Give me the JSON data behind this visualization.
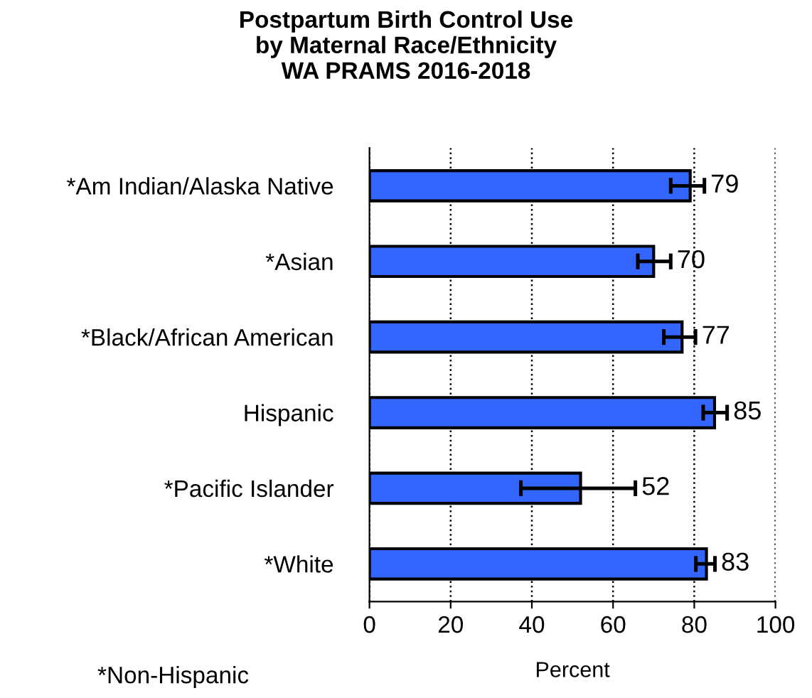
{
  "chart_data": {
    "type": "bar",
    "orientation": "horizontal",
    "title": "Postpartum Birth Control Use\nby Maternal Race/Ethnicity\nWA PRAMS 2016-2018",
    "categories": [
      "*Am Indian/Alaska Native",
      "*Asian",
      "*Black/African American",
      "Hispanic",
      "*Pacific Islander",
      "*White"
    ],
    "values": [
      79,
      70,
      77,
      85,
      52,
      83
    ],
    "errors": [
      [
        74.2,
        82.5
      ],
      [
        66.1,
        74.2
      ],
      [
        72.5,
        80.3
      ],
      [
        82.2,
        88.1
      ],
      [
        37.3,
        65.5
      ],
      [
        80.4,
        85.1
      ]
    ],
    "color": "#3366ff",
    "data_labels": true,
    "xlim": [
      0,
      100
    ],
    "xticks": [
      0,
      20,
      40,
      60,
      80,
      100
    ],
    "xlabel": "Percent",
    "grid": "x",
    "annotations": [
      "*Non-Hispanic"
    ]
  }
}
